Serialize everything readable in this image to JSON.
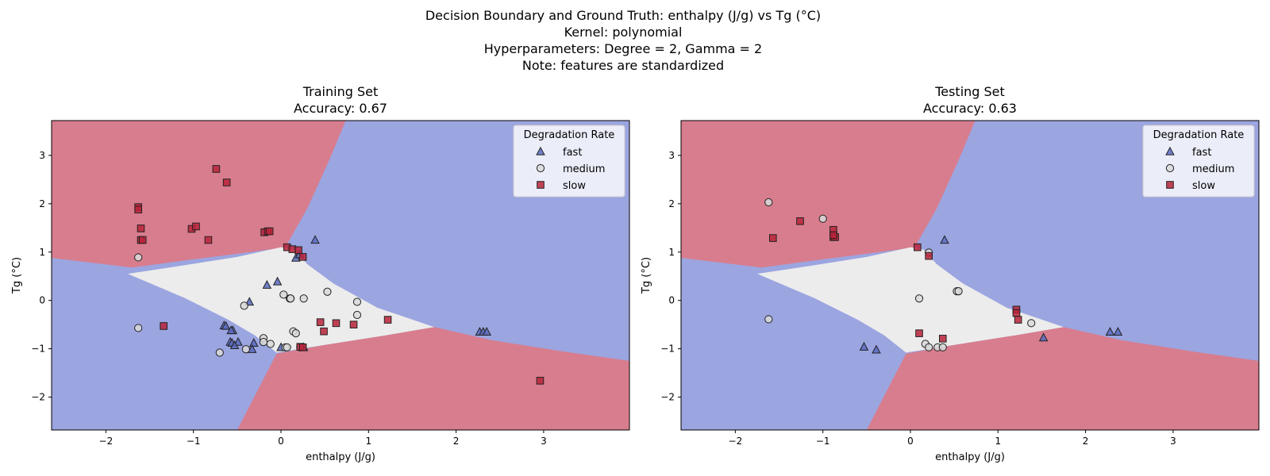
{
  "figure": {
    "title_lines": [
      "Decision Boundary and Ground Truth: enthalpy (J/g) vs Tg (°C)",
      "Kernel: polynomial",
      "Hyperparameters: Degree = 2, Gamma = 2",
      "Note: features are standardized"
    ]
  },
  "colors": {
    "region_slow": "#d87d8e",
    "region_fast": "#9ba5e0",
    "region_medium": "#ececec",
    "marker_fast": "#5b6bc0",
    "marker_medium": "#d9d9d9",
    "marker_slow": "#b8233a"
  },
  "chart_data": [
    {
      "type": "scatter",
      "title": "Training Set",
      "subtitle": "Accuracy: 0.67",
      "xlabel": "enthalpy (J/g)",
      "ylabel": "Tg (°C)",
      "xlim": [
        -2.62,
        3.98
      ],
      "ylim": [
        -2.68,
        3.72
      ],
      "xticks": [
        "−2",
        "−1",
        "0",
        "1",
        "2",
        "3"
      ],
      "xtick_values": [
        -2,
        -1,
        0,
        1,
        2,
        3
      ],
      "yticks": [
        "−2",
        "−1",
        "0",
        "1",
        "2",
        "3"
      ],
      "ytick_values": [
        -2,
        -1,
        0,
        1,
        2,
        3
      ],
      "legend": {
        "title": "Degradation Rate",
        "position": "top-right",
        "entries": [
          "fast",
          "medium",
          "slow"
        ]
      },
      "series": [
        {
          "name": "fast",
          "marker": "triangle",
          "points": [
            [
              0.39,
              1.25
            ],
            [
              0.17,
              0.88
            ],
            [
              0.21,
              0.95
            ],
            [
              -0.04,
              0.39
            ],
            [
              -0.16,
              0.32
            ],
            [
              -0.36,
              -0.03
            ],
            [
              -0.65,
              -0.52
            ],
            [
              -0.63,
              -0.53
            ],
            [
              -0.55,
              -0.62
            ],
            [
              -0.57,
              -0.62
            ],
            [
              -0.58,
              -0.86
            ],
            [
              -0.56,
              -0.88
            ],
            [
              -0.49,
              -0.86
            ],
            [
              -0.53,
              -0.93
            ],
            [
              -0.31,
              -0.88
            ],
            [
              -0.33,
              -1.01
            ],
            [
              0.0,
              -0.97
            ],
            [
              0.26,
              -0.97
            ],
            [
              2.27,
              -0.65
            ],
            [
              2.31,
              -0.65
            ],
            [
              2.35,
              -0.65
            ]
          ]
        },
        {
          "name": "medium",
          "marker": "circle",
          "points": [
            [
              -1.63,
              0.89
            ],
            [
              -1.63,
              -0.57
            ],
            [
              -0.42,
              -0.11
            ],
            [
              0.03,
              0.12
            ],
            [
              0.1,
              0.04
            ],
            [
              0.11,
              0.04
            ],
            [
              0.26,
              0.04
            ],
            [
              0.53,
              0.18
            ],
            [
              0.87,
              -0.03
            ],
            [
              0.87,
              -0.3
            ],
            [
              -0.2,
              -0.78
            ],
            [
              -0.2,
              -0.86
            ],
            [
              -0.12,
              -0.9
            ],
            [
              0.14,
              -0.64
            ],
            [
              0.17,
              -0.68
            ],
            [
              -0.4,
              -1.01
            ],
            [
              -0.7,
              -1.08
            ],
            [
              0.05,
              -0.97
            ],
            [
              0.07,
              -0.97
            ],
            [
              0.22,
              -0.97
            ]
          ]
        },
        {
          "name": "slow",
          "marker": "square",
          "points": [
            [
              -0.74,
              2.72
            ],
            [
              -0.62,
              2.44
            ],
            [
              -1.63,
              1.93
            ],
            [
              -1.63,
              1.88
            ],
            [
              -1.6,
              1.49
            ],
            [
              -1.6,
              1.25
            ],
            [
              -1.58,
              1.25
            ],
            [
              -1.02,
              1.48
            ],
            [
              -0.97,
              1.53
            ],
            [
              -0.83,
              1.25
            ],
            [
              -0.19,
              1.41
            ],
            [
              -0.15,
              1.43
            ],
            [
              -0.13,
              1.43
            ],
            [
              0.07,
              1.1
            ],
            [
              0.13,
              1.06
            ],
            [
              0.2,
              1.04
            ],
            [
              0.25,
              0.9
            ],
            [
              -1.34,
              -0.53
            ],
            [
              0.45,
              -0.45
            ],
            [
              0.49,
              -0.64
            ],
            [
              0.63,
              -0.47
            ],
            [
              0.83,
              -0.5
            ],
            [
              1.22,
              -0.4
            ],
            [
              0.22,
              -0.96
            ],
            [
              0.25,
              -0.97
            ],
            [
              2.96,
              -1.66
            ]
          ]
        }
      ]
    },
    {
      "type": "scatter",
      "title": "Testing Set",
      "subtitle": "Accuracy: 0.63",
      "xlabel": "enthalpy (J/g)",
      "ylabel": "Tg (°C)",
      "xlim": [
        -2.62,
        3.98
      ],
      "ylim": [
        -2.68,
        3.72
      ],
      "xticks": [
        "−2",
        "−1",
        "0",
        "1",
        "2",
        "3"
      ],
      "xtick_values": [
        -2,
        -1,
        0,
        1,
        2,
        3
      ],
      "yticks": [
        "−2",
        "−1",
        "0",
        "1",
        "2",
        "3"
      ],
      "ytick_values": [
        -2,
        -1,
        0,
        1,
        2,
        3
      ],
      "legend": {
        "title": "Degradation Rate",
        "position": "top-right",
        "entries": [
          "fast",
          "medium",
          "slow"
        ]
      },
      "series": [
        {
          "name": "fast",
          "marker": "triangle",
          "points": [
            [
              0.39,
              1.25
            ],
            [
              -0.53,
              -0.96
            ],
            [
              -0.39,
              -1.02
            ],
            [
              1.52,
              -0.77
            ],
            [
              2.28,
              -0.65
            ],
            [
              2.37,
              -0.65
            ]
          ]
        },
        {
          "name": "medium",
          "marker": "circle",
          "points": [
            [
              -1.62,
              2.03
            ],
            [
              -1.0,
              1.69
            ],
            [
              -1.62,
              -0.39
            ],
            [
              0.21,
              0.99
            ],
            [
              0.1,
              0.04
            ],
            [
              0.53,
              0.19
            ],
            [
              0.55,
              0.19
            ],
            [
              1.38,
              -0.47
            ],
            [
              0.17,
              -0.9
            ],
            [
              0.21,
              -0.97
            ],
            [
              0.31,
              -0.97
            ],
            [
              0.37,
              -0.97
            ]
          ]
        },
        {
          "name": "slow",
          "marker": "square",
          "points": [
            [
              -1.26,
              1.64
            ],
            [
              -1.57,
              1.29
            ],
            [
              -0.88,
              1.46
            ],
            [
              -0.88,
              1.31
            ],
            [
              -0.86,
              1.31
            ],
            [
              -0.88,
              1.35
            ],
            [
              0.08,
              1.1
            ],
            [
              0.21,
              0.92
            ],
            [
              0.1,
              -0.68
            ],
            [
              0.37,
              -0.79
            ],
            [
              1.21,
              -0.19
            ],
            [
              1.21,
              -0.26
            ],
            [
              1.23,
              -0.4
            ]
          ]
        }
      ]
    }
  ]
}
